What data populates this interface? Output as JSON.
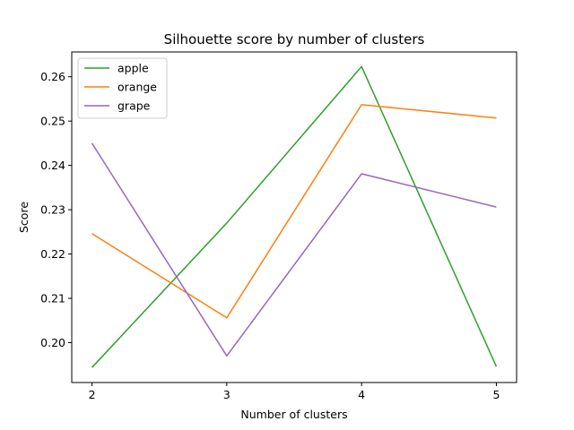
{
  "chart_data": {
    "type": "line",
    "title": "Silhouette score by number of clusters",
    "xlabel": "Number of clusters",
    "ylabel": "Score",
    "x": [
      2,
      3,
      4,
      5
    ],
    "xticks": [
      "2",
      "3",
      "4",
      "5"
    ],
    "xlim": [
      1.85,
      5.15
    ],
    "ylim": [
      0.191,
      0.2656
    ],
    "yticks": [
      "0.20",
      "0.21",
      "0.22",
      "0.23",
      "0.24",
      "0.25",
      "0.26"
    ],
    "ytick_values": [
      0.2,
      0.21,
      0.22,
      0.23,
      0.24,
      0.25,
      0.26
    ],
    "grid": false,
    "legend_position": "top-left",
    "series": [
      {
        "name": "apple",
        "color": "#2ca02c",
        "values": [
          0.1944,
          0.227,
          0.2623,
          0.1946
        ]
      },
      {
        "name": "orange",
        "color": "#ff7f0e",
        "values": [
          0.2246,
          0.2056,
          0.2537,
          0.2507
        ]
      },
      {
        "name": "grape",
        "color": "#9467bd",
        "values": [
          0.245,
          0.197,
          0.2381,
          0.2306
        ]
      }
    ]
  }
}
